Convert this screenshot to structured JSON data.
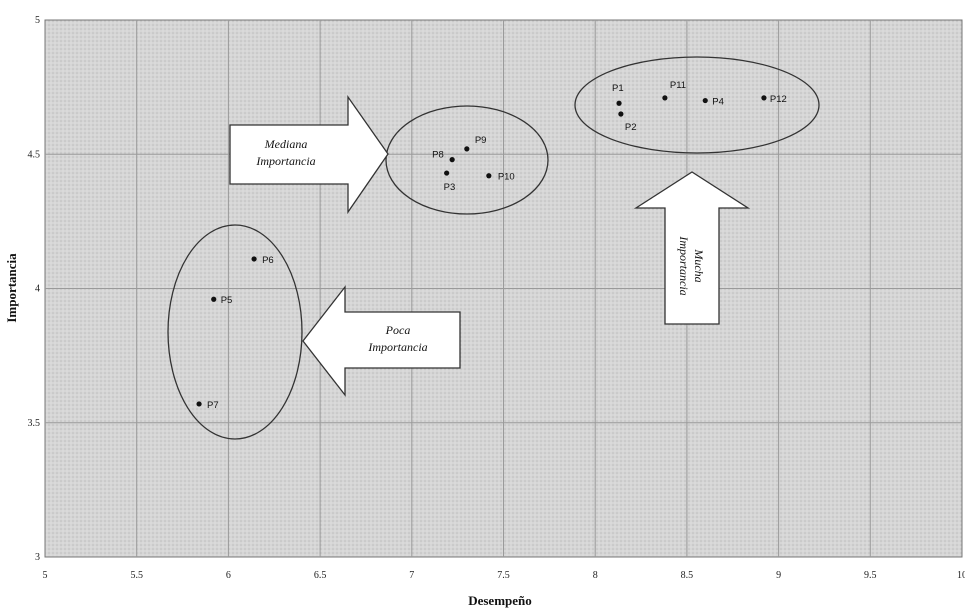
{
  "chart_data": {
    "type": "scatter",
    "xlabel": "Desempeño",
    "ylabel": "Importancia",
    "xlim": [
      5,
      10
    ],
    "ylim": [
      3,
      5
    ],
    "x_ticks": [
      "5",
      "5.5",
      "6",
      "6.5",
      "7",
      "7.5",
      "8",
      "8.5",
      "9",
      "9.5",
      "10"
    ],
    "y_ticks": [
      "3",
      "3.5",
      "4",
      "4.5",
      "5"
    ],
    "grid": true,
    "points": [
      {
        "label": "P1",
        "x": 8.13,
        "y": 4.69
      },
      {
        "label": "P2",
        "x": 8.14,
        "y": 4.65
      },
      {
        "label": "P3",
        "x": 7.19,
        "y": 4.43
      },
      {
        "label": "P4",
        "x": 8.6,
        "y": 4.7
      },
      {
        "label": "P5",
        "x": 5.92,
        "y": 3.96
      },
      {
        "label": "P6",
        "x": 6.14,
        "y": 4.11
      },
      {
        "label": "P7",
        "x": 5.84,
        "y": 3.57
      },
      {
        "label": "P8",
        "x": 7.22,
        "y": 4.48
      },
      {
        "label": "P9",
        "x": 7.3,
        "y": 4.52
      },
      {
        "label": "P10",
        "x": 7.42,
        "y": 4.42
      },
      {
        "label": "P11",
        "x": 8.38,
        "y": 4.71
      },
      {
        "label": "P12",
        "x": 8.92,
        "y": 4.71
      }
    ],
    "annotations": {
      "mediana": [
        "Mediana",
        "Importancia"
      ],
      "poca": [
        "Poca",
        "Importancia"
      ],
      "mucha": [
        "Mucha",
        "Importancia"
      ]
    }
  }
}
